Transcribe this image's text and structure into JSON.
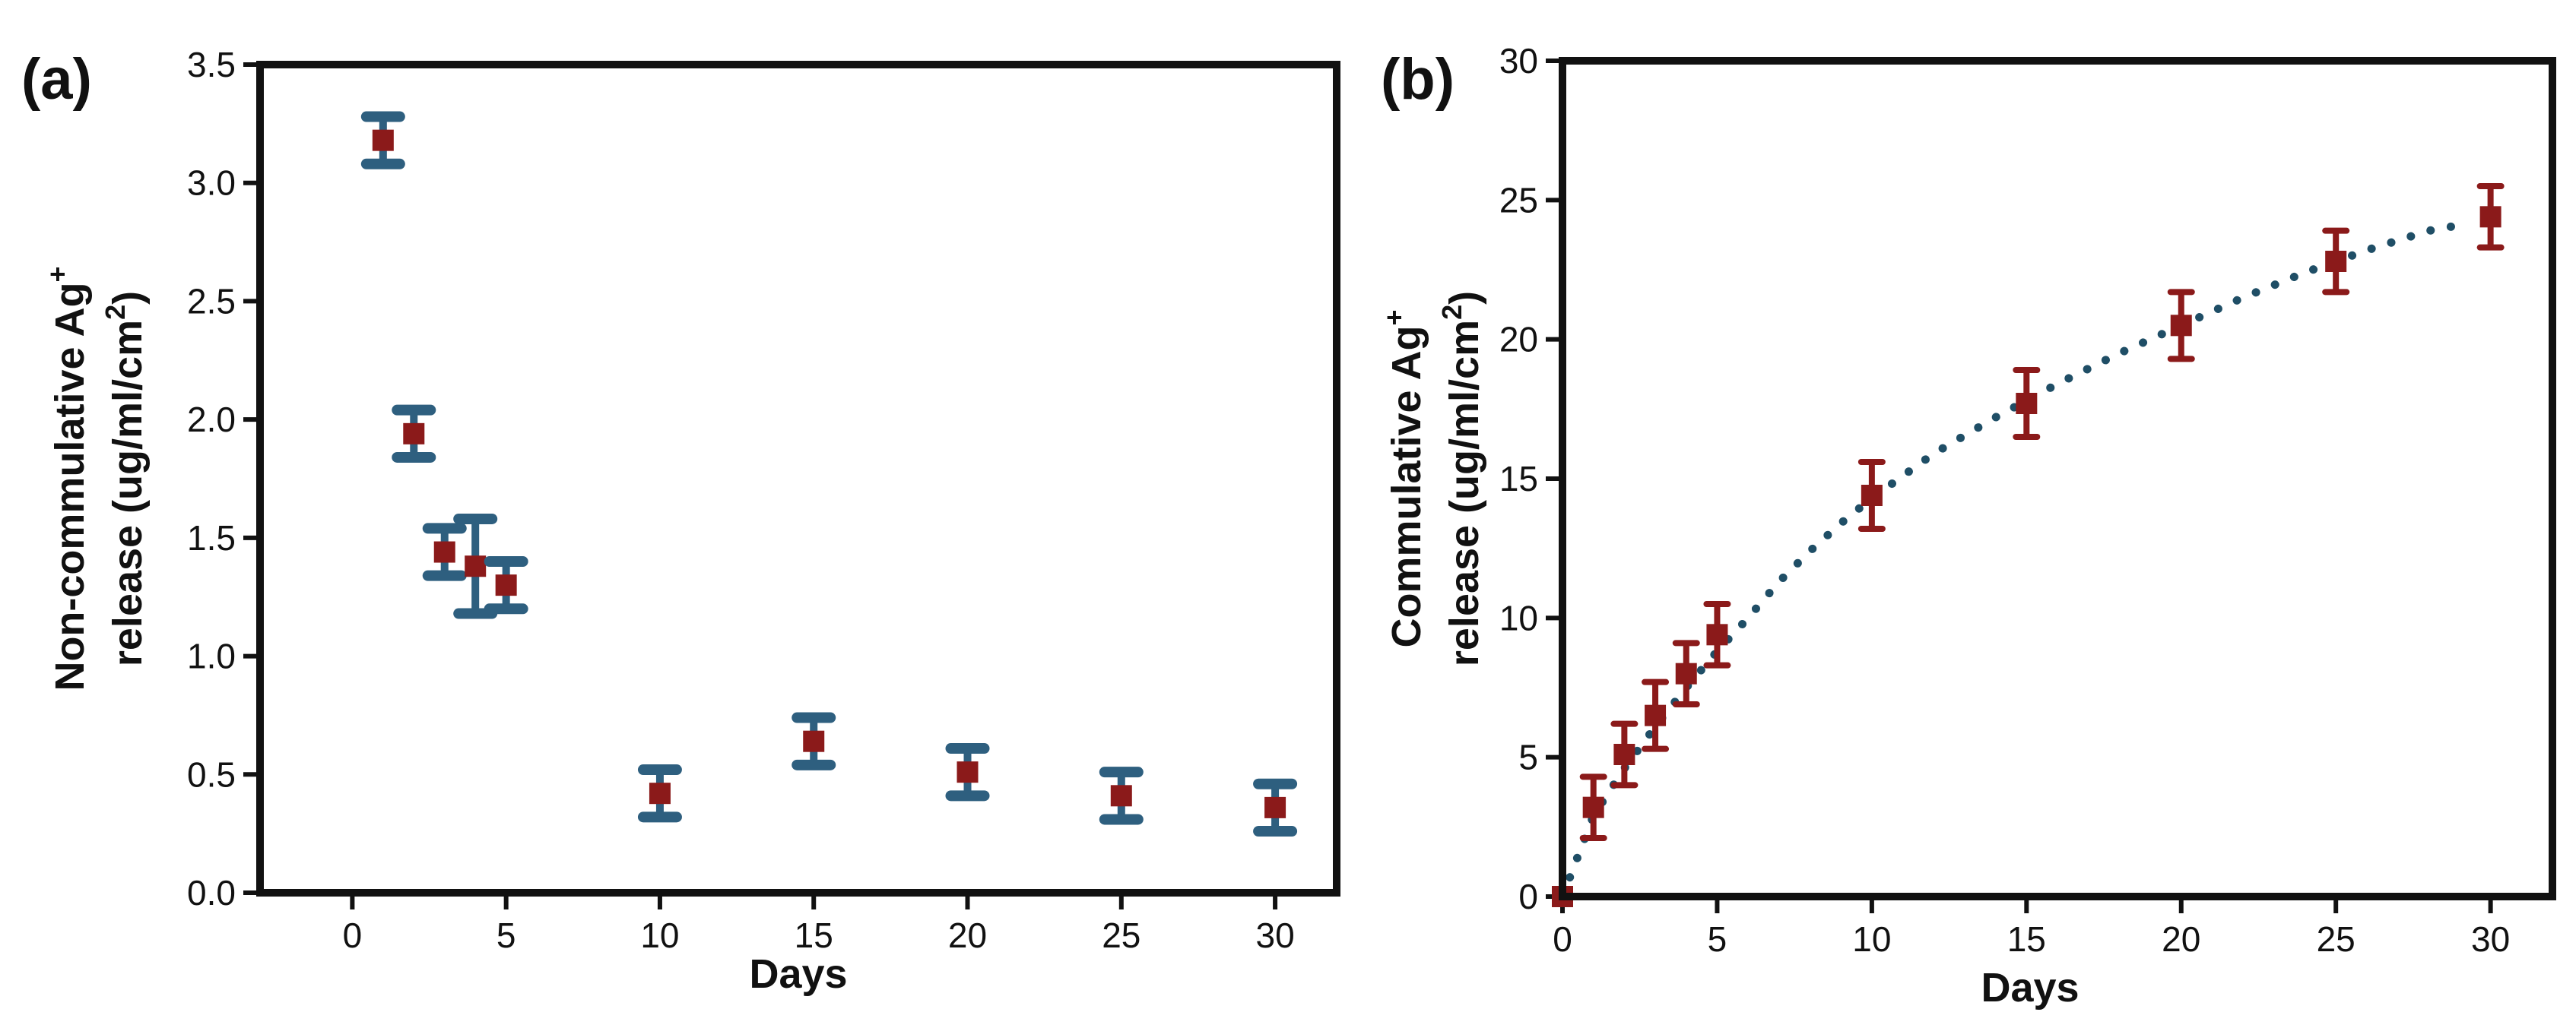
{
  "chart_data": [
    {
      "panel": "(a)",
      "type": "scatter",
      "xlabel": "Days",
      "ylabel_line1": "Non-commulative Ag",
      "ylabel_line1_sup": "+",
      "ylabel_line2": "release (ug/ml/cm",
      "ylabel_line2_sup": "2",
      "ylabel_line2_end": ")",
      "xlim": [
        -3,
        32
      ],
      "ylim": [
        0,
        3.5
      ],
      "xticks": [
        0,
        5,
        10,
        15,
        20,
        25,
        30
      ],
      "yticks": [
        0.0,
        0.5,
        1.0,
        1.5,
        2.0,
        2.5,
        3.0,
        3.5
      ],
      "xtick_labels": [
        "0",
        "5",
        "10",
        "15",
        "20",
        "25",
        "30"
      ],
      "ytick_labels": [
        "0.0",
        "0.5",
        "1.0",
        "1.5",
        "2.0",
        "2.5",
        "3.0",
        "3.5"
      ],
      "marker_color": "#8b1a1a",
      "errorbar_color": "#2e5f7f",
      "x": [
        1,
        2,
        3,
        4,
        5,
        10,
        15,
        20,
        25,
        30
      ],
      "y": [
        3.18,
        1.94,
        1.44,
        1.38,
        1.3,
        0.42,
        0.64,
        0.51,
        0.41,
        0.36
      ],
      "err": [
        0.1,
        0.1,
        0.1,
        0.2,
        0.1,
        0.1,
        0.1,
        0.1,
        0.1,
        0.1
      ]
    },
    {
      "panel": "(b)",
      "type": "scatter",
      "xlabel": "Days",
      "ylabel_line1": "Commulative Ag",
      "ylabel_line1_sup": "+",
      "ylabel_line2": "release (ug/ml/cm",
      "ylabel_line2_sup": "2",
      "ylabel_line2_end": ")",
      "xlim": [
        0,
        32
      ],
      "ylim": [
        0,
        30
      ],
      "xticks": [
        0,
        5,
        10,
        15,
        20,
        25,
        30
      ],
      "yticks": [
        0,
        5,
        10,
        15,
        20,
        25,
        30
      ],
      "xtick_labels": [
        "0",
        "5",
        "10",
        "15",
        "20",
        "25",
        "30"
      ],
      "ytick_labels": [
        "0",
        "5",
        "10",
        "15",
        "20",
        "25",
        "30"
      ],
      "marker_color": "#8b1a1a",
      "errorbar_color": "#8b1a1a",
      "fit_color": "#1f4e66",
      "x": [
        0,
        1,
        2,
        3,
        4,
        5,
        10,
        15,
        20,
        25,
        30
      ],
      "y": [
        0.0,
        3.2,
        5.1,
        6.5,
        8.0,
        9.4,
        14.4,
        17.7,
        20.5,
        22.8,
        24.4
      ],
      "err": [
        0.0,
        1.1,
        1.1,
        1.2,
        1.1,
        1.1,
        1.2,
        1.2,
        1.2,
        1.1,
        1.1
      ],
      "fit_x": [
        0,
        1,
        2,
        3,
        4,
        5,
        6,
        7,
        8,
        9,
        10,
        12,
        14,
        16,
        18,
        20,
        22,
        24,
        26,
        28,
        29
      ],
      "fit_y": [
        0.0,
        2.9,
        4.6,
        6.1,
        7.5,
        8.8,
        10.0,
        11.3,
        12.4,
        13.4,
        14.3,
        15.9,
        17.2,
        18.4,
        19.5,
        20.5,
        21.5,
        22.4,
        23.2,
        23.9,
        24.1
      ]
    }
  ]
}
